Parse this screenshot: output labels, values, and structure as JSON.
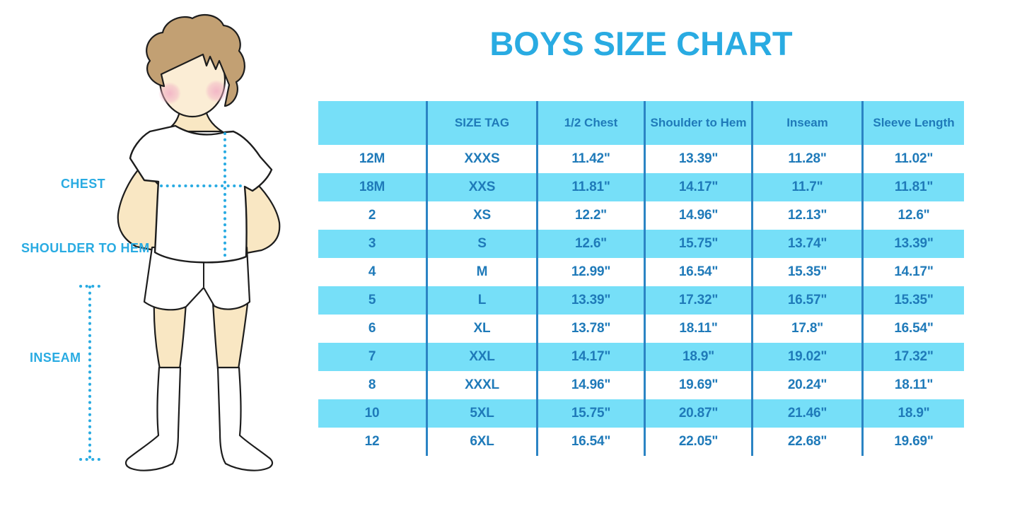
{
  "title": "BOYS SIZE CHART",
  "figure": {
    "description": "boy-measurement-illustration",
    "labels": {
      "chest": "CHEST",
      "shoulder_to_hem": "SHOULDER TO HEM",
      "inseam": "INSEAM"
    }
  },
  "colors": {
    "accent": "#29ABE2",
    "row_cyan": "#76DFF8",
    "table_text": "#1F7AB9",
    "divider": "#2B84C4",
    "skin": "#F9E7C3",
    "face": "#FBEDD5",
    "hair": "#C2A073",
    "blush": "#F1AEC4",
    "outline": "#1D1D1D",
    "background": "#FFFFFF"
  },
  "chart_data": {
    "type": "table",
    "title": "BOYS SIZE CHART",
    "columns": [
      "",
      "SIZE TAG",
      "1/2 Chest",
      "Shoulder to Hem",
      "Inseam",
      "Sleeve Length"
    ],
    "rows": [
      [
        "12M",
        "XXXS",
        "11.42\"",
        "13.39\"",
        "11.28\"",
        "11.02\""
      ],
      [
        "18M",
        "XXS",
        "11.81\"",
        "14.17\"",
        "11.7\"",
        "11.81\""
      ],
      [
        "2",
        "XS",
        "12.2\"",
        "14.96\"",
        "12.13\"",
        "12.6\""
      ],
      [
        "3",
        "S",
        "12.6\"",
        "15.75\"",
        "13.74\"",
        "13.39\""
      ],
      [
        "4",
        "M",
        "12.99\"",
        "16.54\"",
        "15.35\"",
        "14.17\""
      ],
      [
        "5",
        "L",
        "13.39\"",
        "17.32\"",
        "16.57\"",
        "15.35\""
      ],
      [
        "6",
        "XL",
        "13.78\"",
        "18.11\"",
        "17.8\"",
        "16.54\""
      ],
      [
        "7",
        "XXL",
        "14.17\"",
        "18.9\"",
        "19.02\"",
        "17.32\""
      ],
      [
        "8",
        "XXXL",
        "14.96\"",
        "19.69\"",
        "20.24\"",
        "18.11\""
      ],
      [
        "10",
        "5XL",
        "15.75\"",
        "20.87\"",
        "21.46\"",
        "18.9\""
      ],
      [
        "12",
        "6XL",
        "16.54\"",
        "22.05\"",
        "22.68\"",
        "19.69\""
      ]
    ],
    "stripe_pattern": "header cyan, then rows alternate white/cyan starting white"
  }
}
